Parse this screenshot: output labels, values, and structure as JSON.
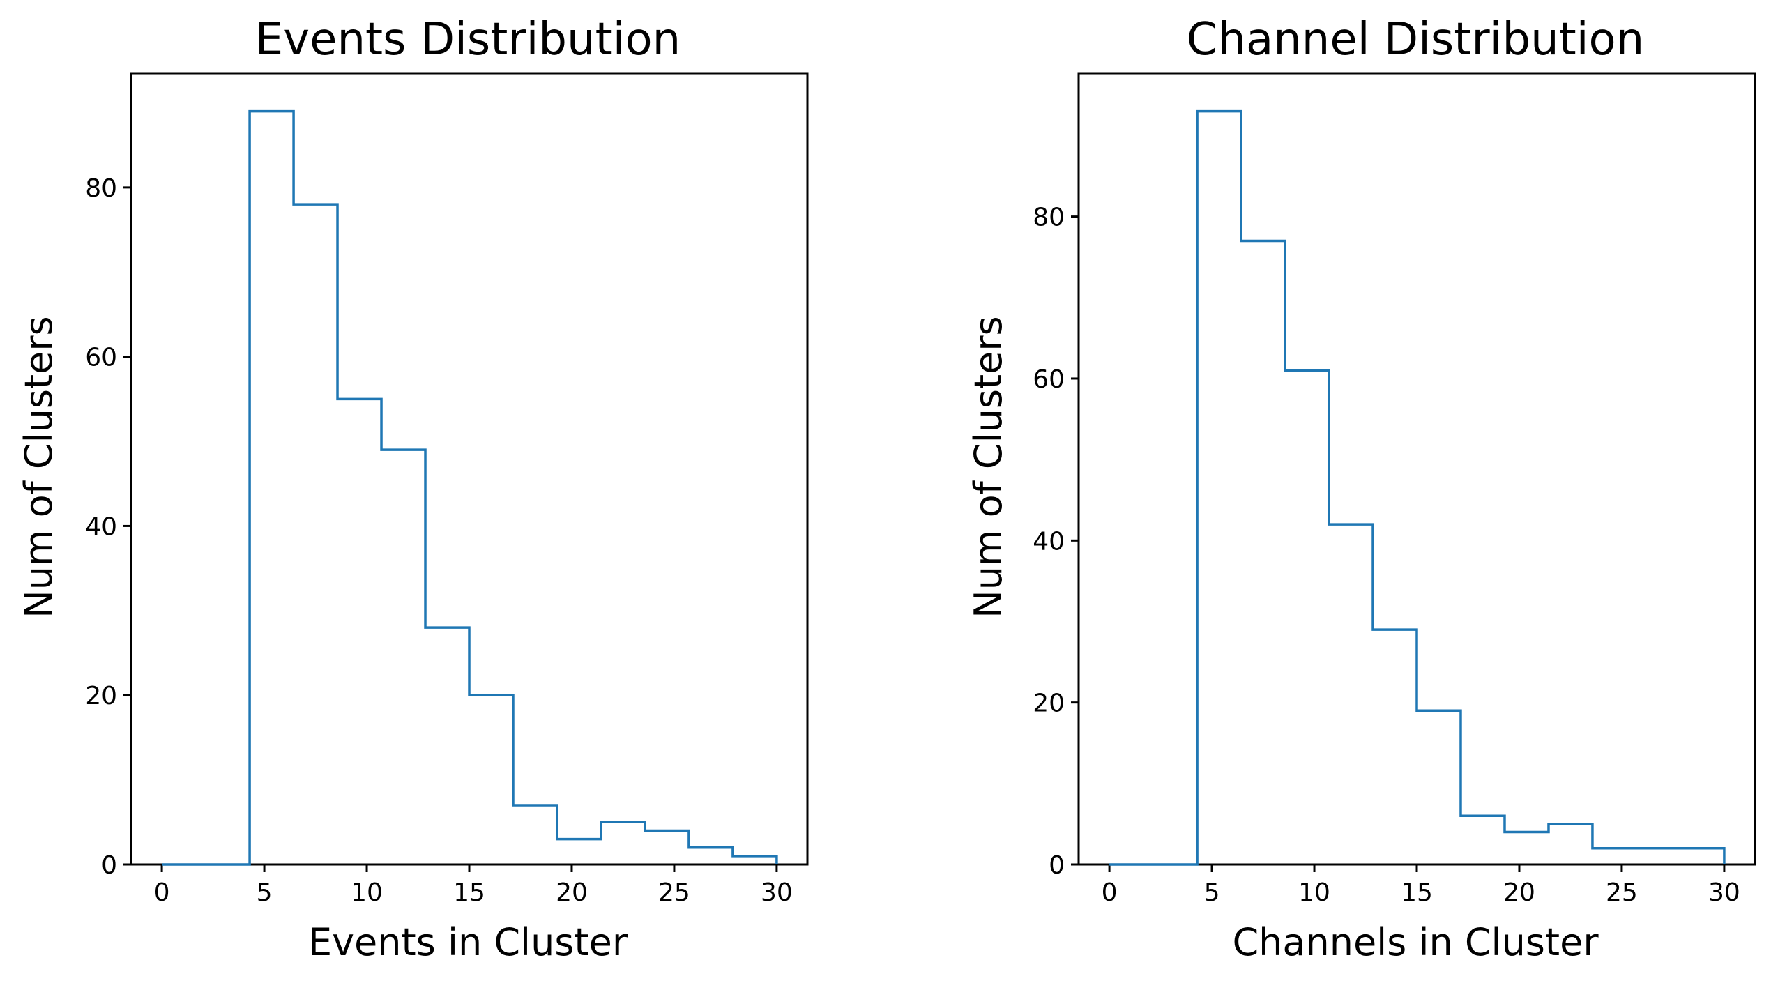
{
  "chart_data": [
    {
      "type": "histogram-step",
      "title": "Events Distribution",
      "xlabel": "Events in Cluster",
      "ylabel": "Num of Clusters",
      "xlim": [
        -1.5,
        31.5
      ],
      "ylim": [
        0,
        93.5
      ],
      "xticks": [
        0,
        5,
        10,
        15,
        20,
        25,
        30
      ],
      "yticks": [
        0,
        20,
        40,
        60,
        80
      ],
      "bin_edges": [
        0,
        2.143,
        4.286,
        6.429,
        8.571,
        10.714,
        12.857,
        15.0,
        17.143,
        19.286,
        21.429,
        23.571,
        25.714,
        27.857,
        30.0
      ],
      "counts": [
        0,
        0,
        89,
        78,
        55,
        49,
        28,
        20,
        7,
        3,
        5,
        4,
        2,
        1
      ],
      "grid": false,
      "color": "#1f77b4"
    },
    {
      "type": "histogram-step",
      "title": "Channel Distribution",
      "xlabel": "Channels in Cluster",
      "ylabel": "Num of Clusters",
      "xlim": [
        -1.5,
        31.5
      ],
      "ylim": [
        0,
        97.7
      ],
      "xticks": [
        0,
        5,
        10,
        15,
        20,
        25,
        30
      ],
      "yticks": [
        0,
        20,
        40,
        60,
        80
      ],
      "bin_edges": [
        0,
        2.143,
        4.286,
        6.429,
        8.571,
        10.714,
        12.857,
        15.0,
        17.143,
        19.286,
        21.429,
        23.571,
        25.714,
        27.857,
        30.0
      ],
      "counts": [
        0,
        0,
        93,
        77,
        61,
        42,
        29,
        19,
        6,
        4,
        5,
        2,
        2,
        2
      ],
      "grid": false,
      "color": "#1f77b4"
    }
  ]
}
